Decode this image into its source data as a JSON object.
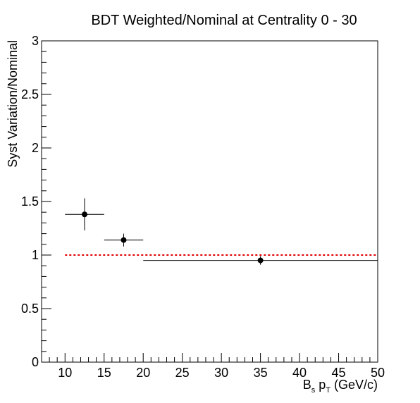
{
  "chart_data": {
    "type": "scatter",
    "title": "BDT Weighted/Nominal at Centrality 0 - 30",
    "xlabel": {
      "main": "B",
      "sub1": "s",
      "mid": " p",
      "sub2": "T",
      "tail": " (GeV/c)"
    },
    "ylabel": "Syst Variation/Nominal",
    "xlim": [
      7,
      50
    ],
    "ylim": [
      0,
      3
    ],
    "xticks": [
      "10",
      "15",
      "20",
      "25",
      "30",
      "35",
      "40",
      "45",
      "50"
    ],
    "yticks": [
      "0",
      "0.5",
      "1",
      "1.5",
      "2",
      "2.5",
      "3"
    ],
    "points": [
      {
        "x": 12.5,
        "xlow": 10,
        "xhigh": 15,
        "y": 1.38,
        "yerr": 0.15
      },
      {
        "x": 17.5,
        "xlow": 15,
        "xhigh": 20,
        "y": 1.14,
        "yerr": 0.06
      },
      {
        "x": 35,
        "xlow": 20,
        "xhigh": 50,
        "y": 0.95,
        "yerr": 0.04
      }
    ],
    "reference_line": {
      "y": 1.0,
      "x_from": 10,
      "x_to": 50,
      "color": "#e00000",
      "style": "dotted"
    },
    "grid": false,
    "marker_color": "#000000"
  }
}
